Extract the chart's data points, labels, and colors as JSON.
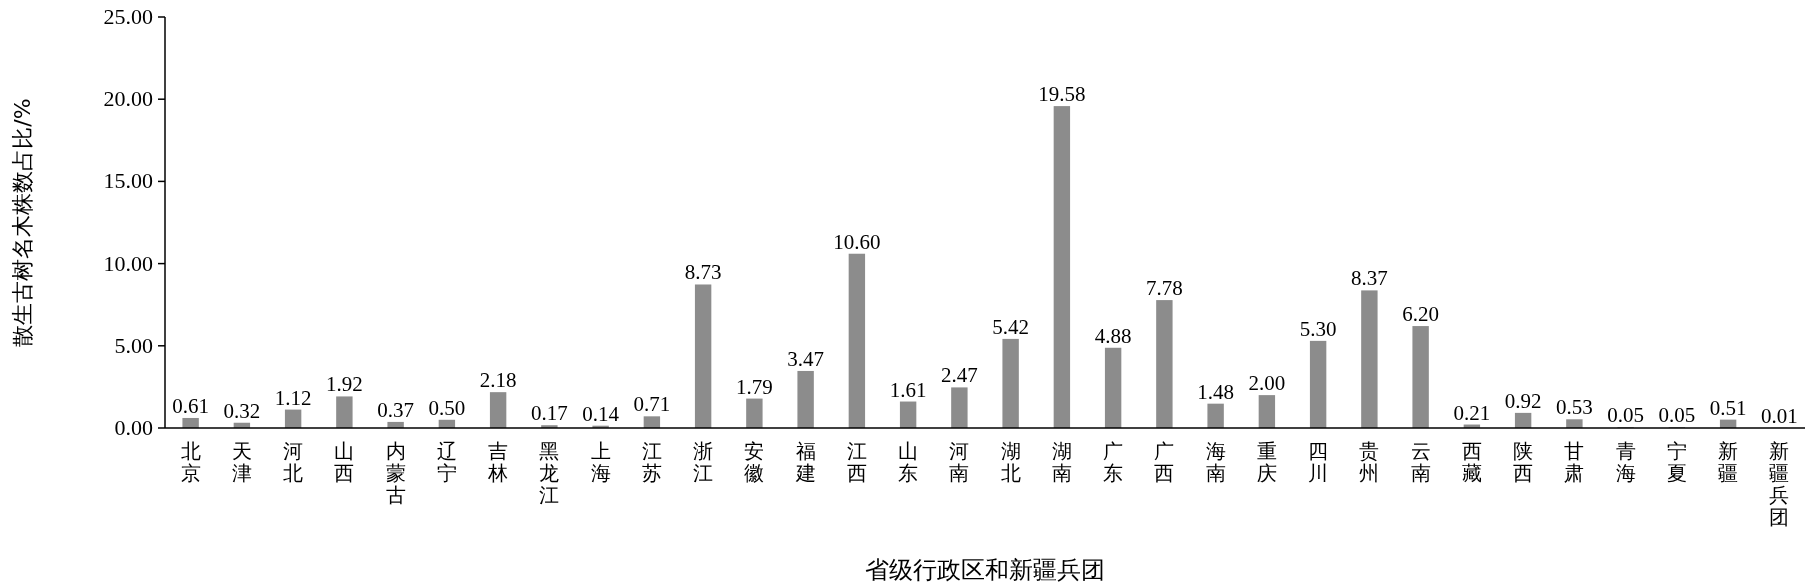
{
  "chart_data": {
    "type": "bar",
    "ylabel": "散生古树名木株数占比/%",
    "xlabel": "省级行政区和新疆兵团",
    "categories": [
      "北京",
      "天津",
      "河北",
      "山西",
      "内蒙古",
      "辽宁",
      "吉林",
      "黑龙江",
      "上海",
      "江苏",
      "浙江",
      "安徽",
      "福建",
      "江西",
      "山东",
      "河南",
      "湖北",
      "湖南",
      "广东",
      "广西",
      "海南",
      "重庆",
      "四川",
      "贵州",
      "云南",
      "西藏",
      "陕西",
      "甘肃",
      "青海",
      "宁夏",
      "新疆",
      "新疆兵团"
    ],
    "values": [
      0.61,
      0.32,
      1.12,
      1.92,
      0.37,
      0.5,
      2.18,
      0.17,
      0.14,
      0.71,
      8.73,
      1.79,
      3.47,
      10.6,
      1.61,
      2.47,
      5.42,
      19.58,
      4.88,
      7.78,
      1.48,
      2.0,
      5.3,
      8.37,
      6.2,
      0.21,
      0.92,
      0.53,
      0.05,
      0.05,
      0.51,
      0.01
    ],
    "value_labels": [
      "0.61",
      "0.32",
      "1.12",
      "1.92",
      "0.37",
      "0.50",
      "2.18",
      "0.17",
      "0.14",
      "0.71",
      "8.73",
      "1.79",
      "3.47",
      "10.60",
      "1.61",
      "2.47",
      "5.42",
      "19.58",
      "4.88",
      "7.78",
      "1.48",
      "2.00",
      "5.30",
      "8.37",
      "6.20",
      "0.21",
      "0.92",
      "0.53",
      "0.05",
      "0.05",
      "0.51",
      "0.01"
    ],
    "color": "#8c8c8c",
    "ylim": [
      0,
      25
    ],
    "yticks": [
      {
        "value": 0,
        "label": "0.00"
      },
      {
        "value": 5,
        "label": "5.00"
      },
      {
        "value": 10,
        "label": "10.00"
      },
      {
        "value": 15,
        "label": "15.00"
      },
      {
        "value": 20,
        "label": "20.00"
      },
      {
        "value": 25,
        "label": "25.00"
      }
    ],
    "grid": false
  }
}
